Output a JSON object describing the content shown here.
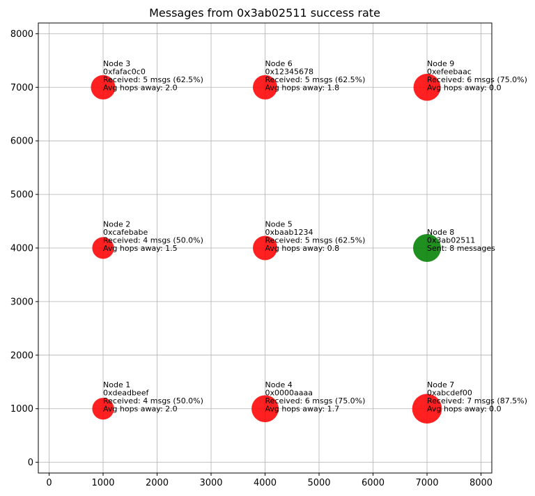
{
  "chart_data": {
    "type": "scatter",
    "title": "Messages from 0x3ab02511 success rate",
    "xlabel": "",
    "ylabel": "",
    "xlim": [
      -200,
      8200
    ],
    "ylim": [
      -200,
      8200
    ],
    "xticks": [
      0,
      1000,
      2000,
      3000,
      4000,
      5000,
      6000,
      7000,
      8000
    ],
    "yticks": [
      0,
      1000,
      2000,
      3000,
      4000,
      5000,
      6000,
      7000,
      8000
    ],
    "grid": true,
    "colors": {
      "receiver": "#ff0000",
      "sender": "#008000"
    },
    "points": [
      {
        "x": 1000,
        "y": 1000,
        "role": "receiver",
        "received": 4,
        "lines": [
          "Node 1",
          "0xdeadbeef",
          "Received: 4 msgs (50.0%)",
          "Avg hops away: 2.0"
        ]
      },
      {
        "x": 1000,
        "y": 4000,
        "role": "receiver",
        "received": 4,
        "lines": [
          "Node 2",
          "0xcafebabe",
          "Received: 4 msgs (50.0%)",
          "Avg hops away: 1.5"
        ]
      },
      {
        "x": 1000,
        "y": 7000,
        "role": "receiver",
        "received": 5,
        "lines": [
          "Node 3",
          "0xfafac0c0",
          "Received: 5 msgs (62.5%)",
          "Avg hops away: 2.0"
        ]
      },
      {
        "x": 4000,
        "y": 1000,
        "role": "receiver",
        "received": 6,
        "lines": [
          "Node 4",
          "0x0000aaaa",
          "Received: 6 msgs (75.0%)",
          "Avg hops away: 1.7"
        ]
      },
      {
        "x": 4000,
        "y": 4000,
        "role": "receiver",
        "received": 5,
        "lines": [
          "Node 5",
          "0xbaab1234",
          "Received: 5 msgs (62.5%)",
          "Avg hops away: 0.8"
        ]
      },
      {
        "x": 4000,
        "y": 7000,
        "role": "receiver",
        "received": 5,
        "lines": [
          "Node 6",
          "0x12345678",
          "Received: 5 msgs (62.5%)",
          "Avg hops away: 1.8"
        ]
      },
      {
        "x": 7000,
        "y": 1000,
        "role": "receiver",
        "received": 7,
        "lines": [
          "Node 7",
          "0xabcdef00",
          "Received: 7 msgs (87.5%)",
          "Avg hops away: 0.0"
        ]
      },
      {
        "x": 7000,
        "y": 4000,
        "role": "sender",
        "sent": 8,
        "lines": [
          "Node 8",
          "0x3ab02511",
          "Sent: 8 messages"
        ]
      },
      {
        "x": 7000,
        "y": 7000,
        "role": "receiver",
        "received": 6,
        "lines": [
          "Node 9",
          "0xefeebaac",
          "Received: 6 msgs (75.0%)",
          "Avg hops away: 0.0"
        ]
      }
    ]
  }
}
